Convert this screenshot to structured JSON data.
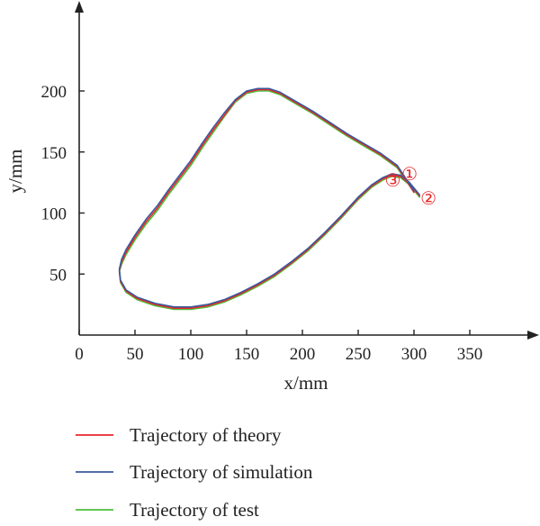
{
  "chart_data": {
    "type": "line",
    "title": "",
    "xlabel": "x/mm",
    "ylabel": "y/mm",
    "xlim": [
      0,
      400
    ],
    "ylim": [
      0,
      250
    ],
    "xticks": [
      0,
      50,
      100,
      150,
      200,
      250,
      300,
      350
    ],
    "yticks": [
      50,
      100,
      150,
      200
    ],
    "grid": false,
    "legend_position": "bottom",
    "series": [
      {
        "name": "Trajectory of theory",
        "color": "#e8262a",
        "x": [
          300,
          285,
          270,
          255,
          240,
          225,
          210,
          195,
          180,
          170,
          160,
          150,
          140,
          130,
          120,
          110,
          100,
          90,
          80,
          70,
          60,
          50,
          42,
          38,
          36,
          37,
          42,
          52,
          68,
          85,
          100,
          115,
          130,
          145,
          160,
          175,
          190,
          205,
          220,
          235,
          250,
          262,
          272,
          280,
          288,
          296,
          305
        ],
        "y": [
          117,
          138,
          148,
          156,
          164,
          173,
          182,
          190,
          198,
          201,
          201,
          199,
          192,
          180,
          168,
          155,
          141,
          129,
          117,
          104,
          93,
          80,
          68,
          60,
          53,
          44,
          36,
          30,
          25,
          22,
          22,
          24,
          28,
          34,
          41,
          49,
          59,
          70,
          83,
          97,
          112,
          122,
          128,
          131,
          130,
          124,
          114
        ]
      },
      {
        "name": "Trajectory of simulation",
        "color": "#3a5a9c",
        "x": [
          300,
          285,
          270,
          255,
          240,
          225,
          210,
          195,
          180,
          170,
          160,
          150,
          140,
          130,
          120,
          110,
          100,
          90,
          80,
          70,
          60,
          50,
          42,
          38,
          36,
          37,
          42,
          52,
          68,
          85,
          100,
          115,
          130,
          145,
          160,
          175,
          190,
          205,
          220,
          235,
          250,
          262,
          272,
          280,
          288,
          296,
          305
        ],
        "y": [
          118,
          139,
          149,
          157,
          165,
          174,
          183,
          191,
          199,
          202,
          202,
          200,
          193,
          182,
          170,
          157,
          143,
          131,
          119,
          106,
          95,
          82,
          70,
          62,
          54,
          45,
          37,
          31,
          26,
          23,
          23,
          25,
          29,
          35,
          42,
          50,
          60,
          71,
          84,
          98,
          113,
          123,
          129,
          132,
          131,
          125,
          115
        ]
      },
      {
        "name": "Trajectory of test",
        "color": "#4bbf3a",
        "x": [
          300,
          285,
          270,
          255,
          240,
          225,
          210,
          195,
          180,
          170,
          160,
          150,
          140,
          130,
          120,
          110,
          100,
          90,
          80,
          70,
          60,
          50,
          42,
          38,
          36,
          37,
          42,
          52,
          68,
          85,
          100,
          115,
          130,
          145,
          160,
          175,
          190,
          205,
          220,
          235,
          250,
          262,
          272,
          280,
          288,
          296,
          305
        ],
        "y": [
          117,
          137,
          147,
          155,
          163,
          172,
          181,
          189,
          197,
          200,
          200,
          198,
          191,
          179,
          166,
          153,
          139,
          127,
          115,
          102,
          91,
          78,
          66,
          58,
          52,
          43,
          35,
          29,
          24,
          21,
          21,
          23,
          27,
          33,
          40,
          48,
          58,
          69,
          82,
          96,
          111,
          121,
          127,
          130,
          129,
          123,
          113
        ]
      }
    ],
    "annotations": [
      {
        "text": "①",
        "x": 296,
        "y": 132
      },
      {
        "text": "②",
        "x": 313,
        "y": 112
      },
      {
        "text": "③",
        "x": 281,
        "y": 127
      }
    ]
  }
}
